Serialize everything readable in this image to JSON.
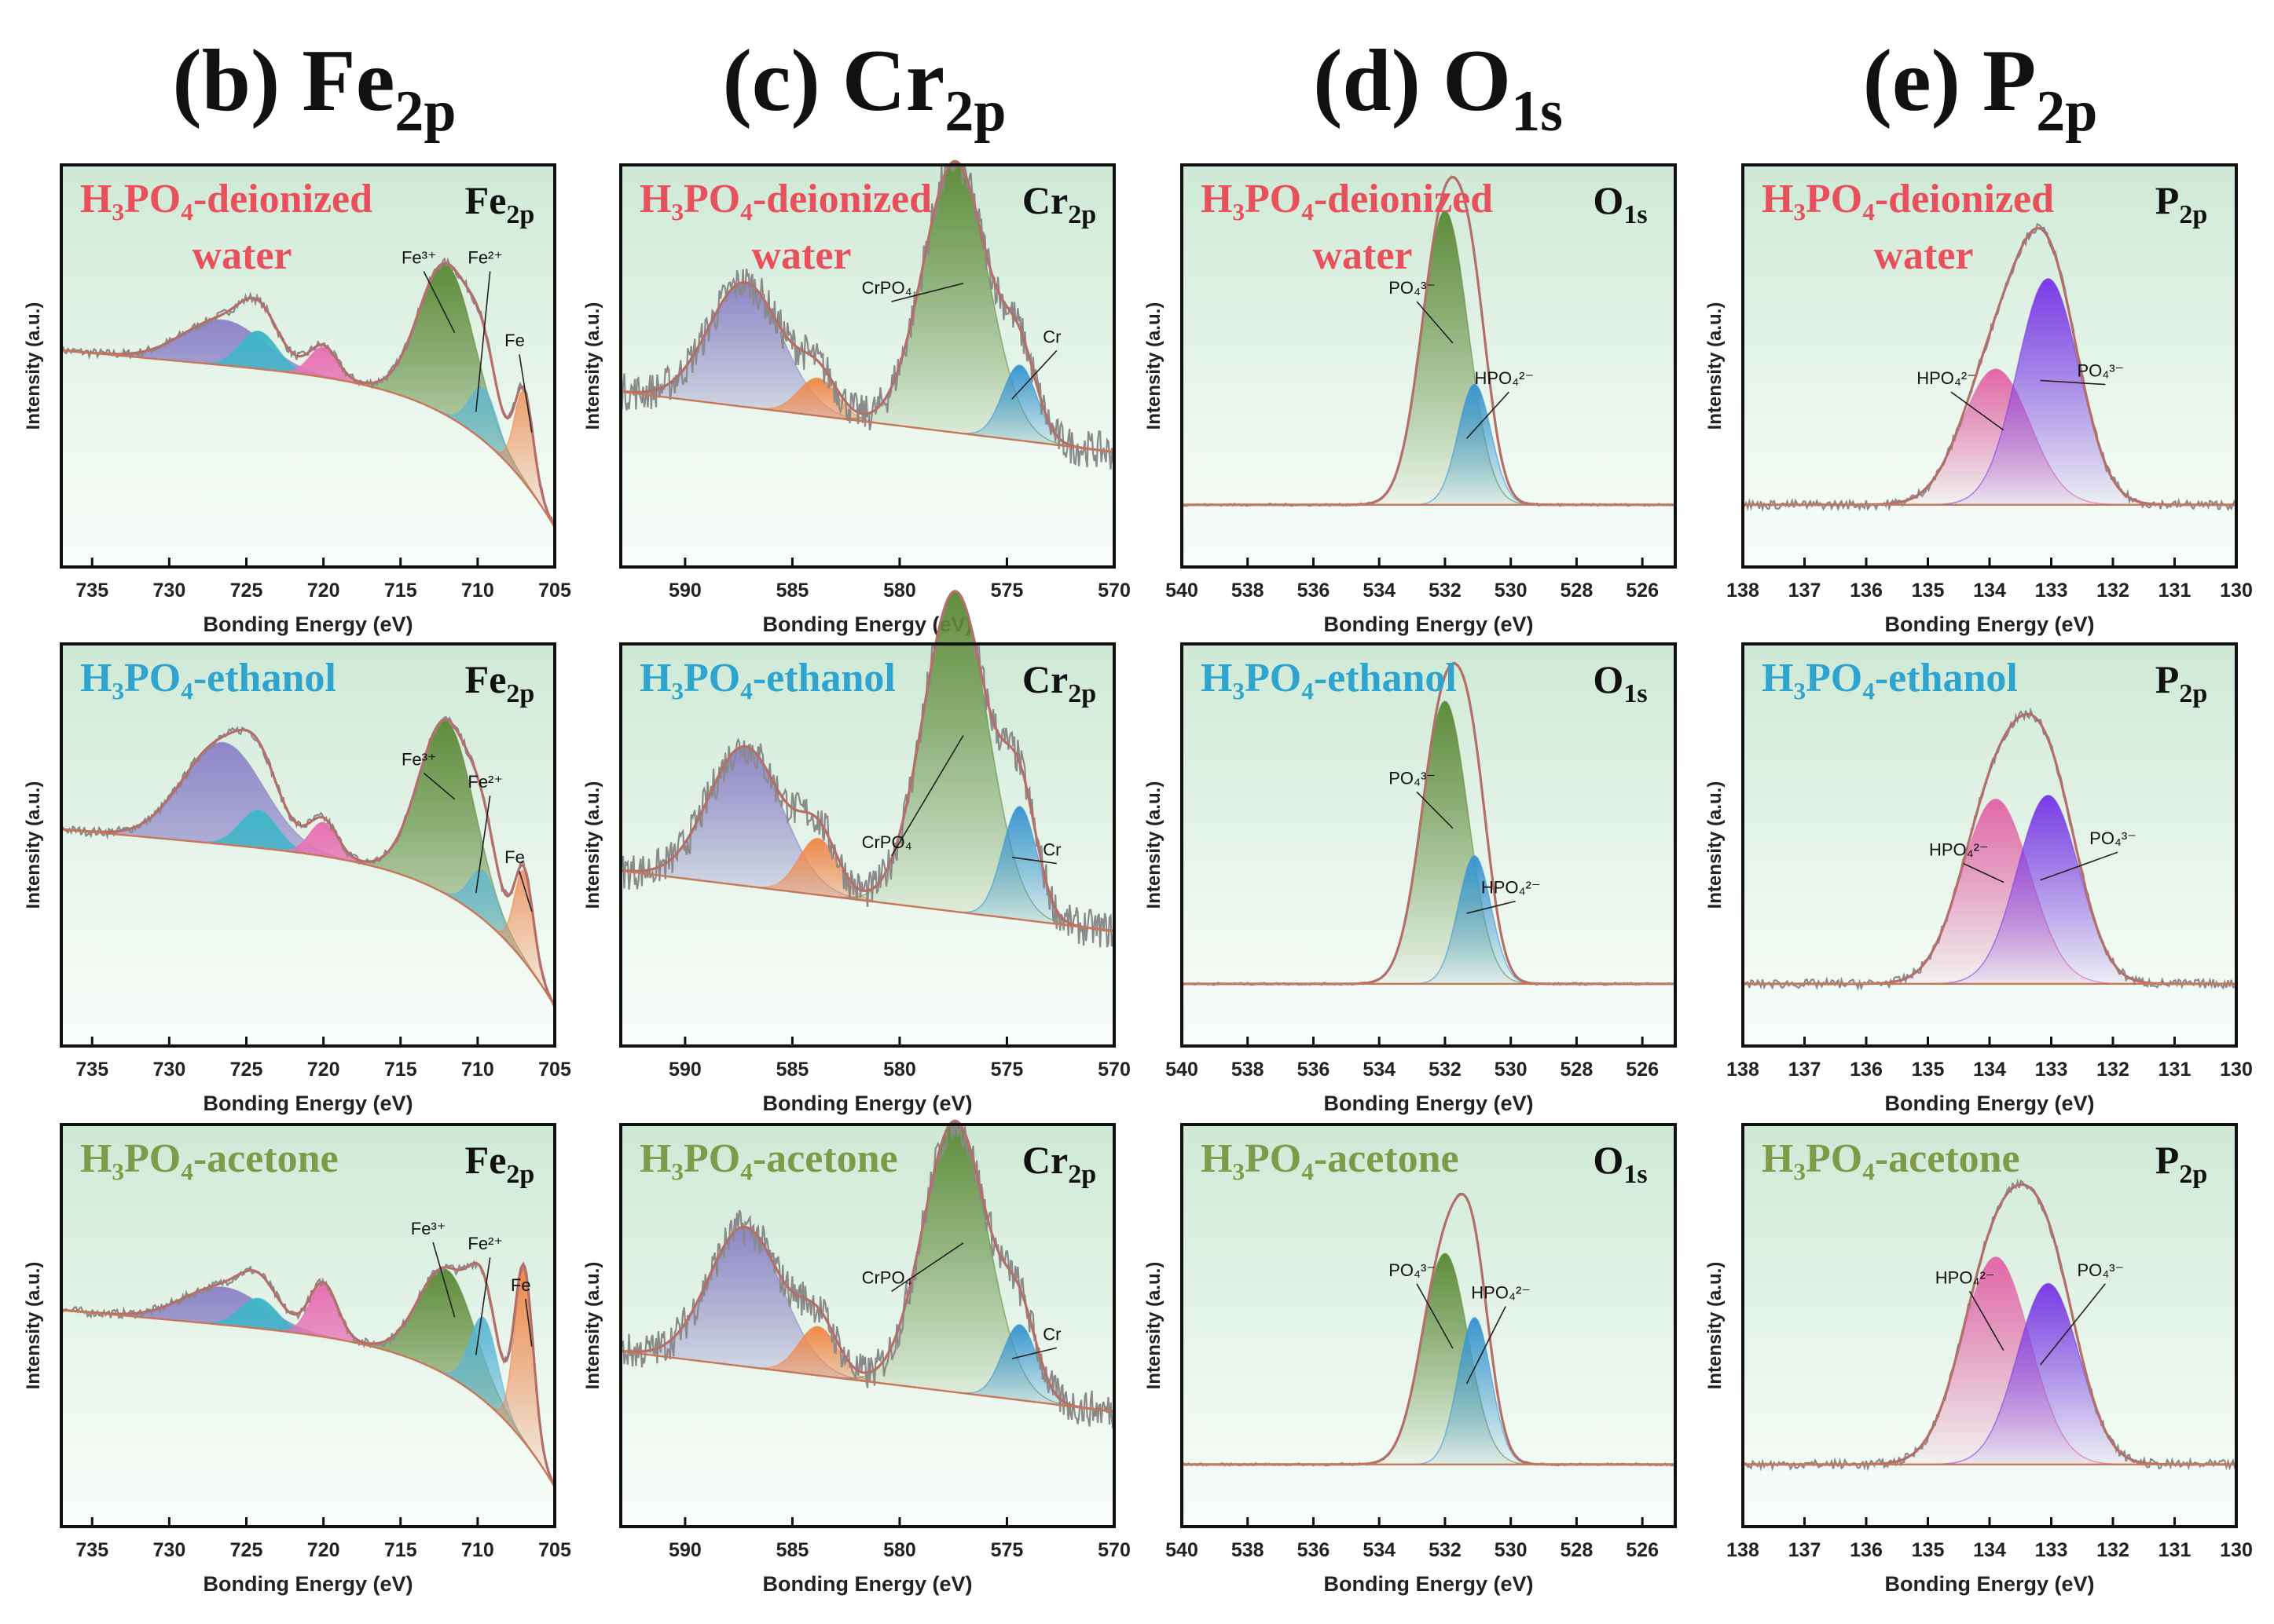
{
  "column_titles": [
    {
      "prefix": "(b) ",
      "main": "Fe",
      "sub": "2p"
    },
    {
      "prefix": "(c) ",
      "main": "Cr",
      "sub": "2p"
    },
    {
      "prefix": "(d) ",
      "main": "O",
      "sub": "1s"
    },
    {
      "prefix": "(e) ",
      "main": "P",
      "sub": "2p"
    }
  ],
  "rows": [
    {
      "line1": "H₃PO₄-deionized",
      "line2": "water",
      "color": "#e8515c"
    },
    {
      "line1": "H₃PO₄-ethanol",
      "line2": "",
      "color": "#2ea4cf"
    },
    {
      "line1": "H₃PO₄-acetone",
      "line2": "",
      "color": "#7f9a48"
    }
  ],
  "ylabel": "Intensity (a.u.)",
  "xlabel": "Bonding Energy (eV)",
  "colors": {
    "panel_green": "#cfe9d6",
    "envelope": "#b46f6a",
    "raw_data": "#8a8a8a",
    "baseline": "#c8785a"
  },
  "chart_data": [
    {
      "type": "area",
      "element": "Fe2p",
      "tag_main": "Fe",
      "tag_sub": "2p",
      "xlim": [
        737,
        705
      ],
      "xticks": [
        "735",
        "730",
        "725",
        "720",
        "715",
        "710",
        "705"
      ],
      "xtick_values": [
        735,
        730,
        725,
        720,
        715,
        710,
        705
      ],
      "components": [
        {
          "name": "",
          "color": "#8f86c9",
          "center": 726.5,
          "width": 2.6
        },
        {
          "name": "",
          "color": "#3fb6c8",
          "center": 724.2,
          "width": 1.2
        },
        {
          "name": "",
          "color": "#e772b4",
          "center": 720.0,
          "width": 0.9
        },
        {
          "name": "Fe³⁺",
          "color": "#5f8c3b",
          "center": 712.0,
          "width": 1.8
        },
        {
          "name": "Fe²⁺",
          "color": "#5ab5d6",
          "center": 709.6,
          "width": 0.9
        },
        {
          "name": "Fe",
          "color": "#f0864c",
          "center": 707.0,
          "width": 0.6
        }
      ],
      "rows": [
        {
          "amplitudes": [
            0.12,
            0.1,
            0.08,
            0.4,
            0.14,
            0.24
          ],
          "label_x": [
            713.8,
            709.5,
            707.6
          ],
          "label_y": [
            0.78,
            0.78,
            0.56
          ]
        },
        {
          "amplitudes": [
            0.27,
            0.1,
            0.09,
            0.46,
            0.13,
            0.24
          ],
          "label_x": [
            713.8,
            709.5,
            707.6
          ],
          "label_y": [
            0.72,
            0.66,
            0.46
          ]
        },
        {
          "amplitudes": [
            0.1,
            0.08,
            0.14,
            0.28,
            0.22,
            0.46
          ],
          "label_x": [
            713.2,
            709.5,
            707.2
          ],
          "label_y": [
            0.75,
            0.71,
            0.6
          ]
        }
      ]
    },
    {
      "type": "area",
      "element": "Cr2p",
      "tag_main": "Cr",
      "tag_sub": "2p",
      "xlim": [
        593,
        570
      ],
      "xticks": [
        "590",
        "585",
        "580",
        "575",
        "570"
      ],
      "xtick_values": [
        590,
        585,
        580,
        575,
        570
      ],
      "components": [
        {
          "name": "",
          "color": "#8f86c9",
          "center": 587.2,
          "width": 1.7
        },
        {
          "name": "",
          "color": "#f08a4c",
          "center": 583.8,
          "width": 0.9
        },
        {
          "name": "CrPO₄",
          "color": "#5f8c3b",
          "center": 577.4,
          "width": 1.5
        },
        {
          "name": "Cr",
          "color": "#3a96cf",
          "center": 574.4,
          "width": 0.8
        }
      ],
      "rows": [
        {
          "amplitudes": [
            0.33,
            0.1,
            0.72,
            0.2
          ],
          "label_x": [
            580.6,
            572.9
          ],
          "label_y": [
            0.7,
            0.57
          ]
        },
        {
          "amplitudes": [
            0.37,
            0.15,
            0.85,
            0.3
          ],
          "label_x": [
            580.6,
            572.9
          ],
          "label_y": [
            0.5,
            0.48
          ]
        },
        {
          "amplitudes": [
            0.37,
            0.13,
            0.72,
            0.2
          ],
          "label_x": [
            580.6,
            572.9
          ],
          "label_y": [
            0.62,
            0.47
          ]
        }
      ]
    },
    {
      "type": "area",
      "element": "O1s",
      "tag_main": "O",
      "tag_sub": "1s",
      "xlim": [
        540,
        525
      ],
      "xticks": [
        "540",
        "538",
        "536",
        "534",
        "532",
        "530",
        "528",
        "526"
      ],
      "xtick_values": [
        540,
        538,
        536,
        534,
        532,
        530,
        528,
        526
      ],
      "components": [
        {
          "name": "PO₄³⁻",
          "color": "#5f8c3b",
          "center": 532.0,
          "width": 0.7
        },
        {
          "name": "HPO₄²⁻",
          "color": "#3a96cf",
          "center": 531.1,
          "width": 0.5
        }
      ],
      "rows": [
        {
          "amplitudes": [
            0.78,
            0.32
          ],
          "label_x": [
            533.0,
            530.2
          ],
          "label_y": [
            0.7,
            0.46
          ]
        },
        {
          "amplitudes": [
            0.75,
            0.34
          ],
          "label_x": [
            533.0,
            530.0
          ],
          "label_y": [
            0.67,
            0.38
          ]
        },
        {
          "amplitudes": [
            0.56,
            0.39
          ],
          "label_x": [
            533.0,
            530.3
          ],
          "label_y": [
            0.64,
            0.58
          ]
        }
      ]
    },
    {
      "type": "area",
      "element": "P2p",
      "tag_main": "P",
      "tag_sub": "2p",
      "xlim": [
        138,
        130
      ],
      "xticks": [
        "138",
        "137",
        "136",
        "135",
        "134",
        "133",
        "132",
        "131",
        "130"
      ],
      "xtick_values": [
        138,
        137,
        136,
        135,
        134,
        133,
        132,
        131,
        130
      ],
      "components": [
        {
          "name": "HPO₄²⁻",
          "color": "#e268a8",
          "center": 133.9,
          "width": 0.55
        },
        {
          "name": "PO₄³⁻",
          "color": "#7a3be6",
          "center": 133.05,
          "width": 0.5
        }
      ],
      "rows": [
        {
          "amplitudes": [
            0.36,
            0.6
          ],
          "label_x": [
            134.7,
            132.2
          ],
          "label_y": [
            0.46,
            0.48
          ]
        },
        {
          "amplitudes": [
            0.49,
            0.5
          ],
          "label_x": [
            134.5,
            132.0
          ],
          "label_y": [
            0.48,
            0.51
          ]
        },
        {
          "amplitudes": [
            0.55,
            0.48
          ],
          "label_x": [
            134.4,
            132.2
          ],
          "label_y": [
            0.62,
            0.64
          ]
        }
      ]
    }
  ]
}
